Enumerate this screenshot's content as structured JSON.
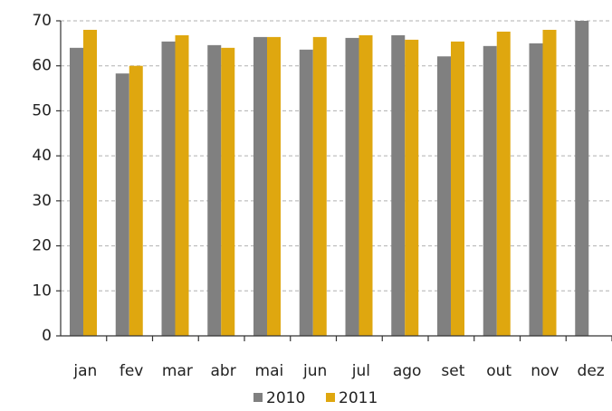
{
  "chart_data": {
    "type": "bar",
    "categories": [
      "jan",
      "fev",
      "mar",
      "abr",
      "mai",
      "jun",
      "jul",
      "ago",
      "set",
      "out",
      "nov",
      "dez"
    ],
    "series": [
      {
        "name": "2010",
        "color": "#808080",
        "values": [
          64,
          58.3,
          65.4,
          64.6,
          66.4,
          63.6,
          66.2,
          66.8,
          62.1,
          64.4,
          65,
          70
        ]
      },
      {
        "name": "2011",
        "color": "#dfa70f",
        "values": [
          68,
          60,
          66.8,
          64,
          66.4,
          66.4,
          66.8,
          65.8,
          65.4,
          67.6,
          68,
          null
        ]
      }
    ],
    "ylim": [
      0,
      70
    ],
    "yticks": [
      0,
      10,
      20,
      30,
      40,
      50,
      60,
      70
    ],
    "grid": true,
    "legend": "bottom"
  }
}
